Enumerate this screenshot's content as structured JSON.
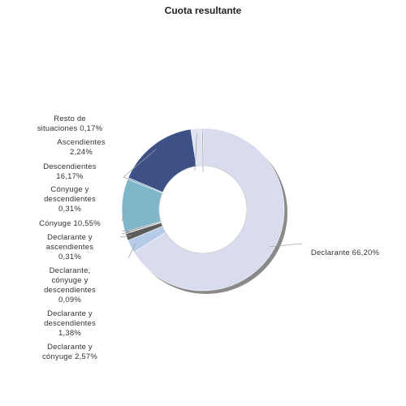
{
  "chart_data": {
    "type": "pie",
    "variant": "donut",
    "title": "Cuota resultante",
    "slices": [
      {
        "label": "Declarante",
        "display": "Declarante 66,20%",
        "value": 66.2,
        "color": "#d9dcef"
      },
      {
        "label": "Declarante y cónyuge",
        "display": "Declarante y\ncónyuge 2,57%",
        "value": 2.57,
        "color": "#b5cbe8"
      },
      {
        "label": "Declarante y descendientes",
        "display": "Declarante y\ndescendientes\n1,38%",
        "value": 1.38,
        "color": "#5c5c5c"
      },
      {
        "label": "Declarante, cónyuge y descendientes",
        "display": "Declarante,\ncónyuge y\ndescendientes\n0,09%",
        "value": 0.09,
        "color": "#9a9a9a"
      },
      {
        "label": "Declarante y ascendientes",
        "display": "Declarante y\nascendientes\n0,31%",
        "value": 0.31,
        "color": "#7c7c7c"
      },
      {
        "label": "Cónyuge",
        "display": "Cónyuge 10,55%",
        "value": 10.55,
        "color": "#80b6ca"
      },
      {
        "label": "Cónyuge y descendientes",
        "display": "Cónyuge y\ndescendientes\n0,31%",
        "value": 0.31,
        "color": "#6e9db5"
      },
      {
        "label": "Descendientes",
        "display": "Descendientes\n16,17%",
        "value": 16.17,
        "color": "#3e5186"
      },
      {
        "label": "Ascendientes",
        "display": "Ascendientes\n2,24%",
        "value": 2.24,
        "color": "#e0e3f1"
      },
      {
        "label": "Resto de situaciones",
        "display": "Resto de\nsituaciones 0,17%",
        "value": 0.17,
        "color": "#6f7a99"
      }
    ]
  }
}
